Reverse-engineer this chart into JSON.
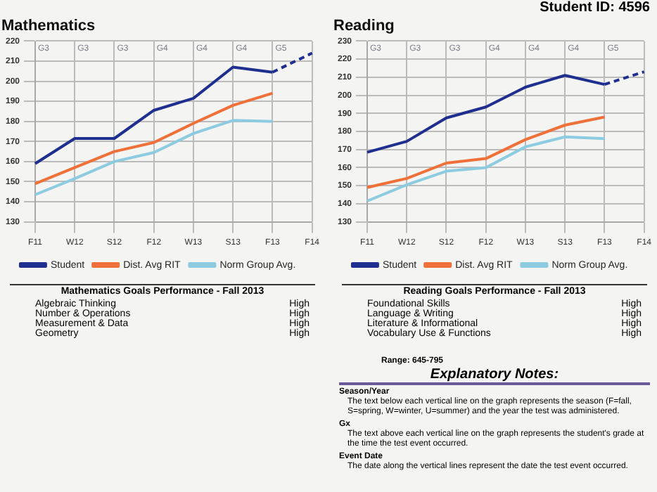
{
  "chart_data": [
    {
      "type": "line",
      "title": "Mathematics",
      "categories": [
        "F11",
        "W12",
        "S12",
        "F12",
        "W13",
        "S13",
        "F13",
        "F14"
      ],
      "ylim": [
        130,
        220
      ],
      "yticks": [
        130,
        140,
        150,
        160,
        170,
        180,
        190,
        200,
        210,
        220
      ],
      "grid": true,
      "legend": "bottom",
      "marker": "none",
      "series": [
        {
          "name": "Student",
          "color": "#1f2f8f",
          "values": [
            159,
            171.5,
            171.5,
            185.5,
            191.5,
            207,
            204.5,
            null
          ]
        },
        {
          "color": "#1f2f8f",
          "line_style": "dashed",
          "values": [
            null,
            null,
            null,
            null,
            null,
            null,
            204.5,
            214
          ]
        },
        {
          "name": "Dist. Avg RIT",
          "color": "#f0703a",
          "values": [
            149,
            157,
            165,
            169.5,
            179,
            188,
            194,
            null
          ]
        },
        {
          "name": "Norm Group Avg.",
          "color": "#8ccbe0",
          "values": [
            143.5,
            151.5,
            160,
            164.5,
            174,
            180.5,
            180,
            null
          ]
        }
      ],
      "annotations": [
        "G3",
        "G3",
        "G3",
        "G4",
        "G4",
        "G4",
        "G5"
      ]
    },
    {
      "type": "line",
      "title": "Reading",
      "subtitle": "Student ID: 4596",
      "categories": [
        "F11",
        "W12",
        "S12",
        "F12",
        "W13",
        "S13",
        "F13",
        "F14"
      ],
      "ylim": [
        130,
        230
      ],
      "yticks": [
        130,
        140,
        150,
        160,
        170,
        180,
        190,
        200,
        210,
        220,
        230
      ],
      "grid": true,
      "legend": "bottom",
      "marker": "none",
      "series": [
        {
          "name": "Student",
          "color": "#1f2f8f",
          "values": [
            168.5,
            174.5,
            187.5,
            193.5,
            204.5,
            211,
            206,
            null
          ]
        },
        {
          "color": "#1f2f8f",
          "line_style": "dashed",
          "values": [
            null,
            null,
            null,
            null,
            null,
            null,
            206,
            213
          ]
        },
        {
          "name": "Dist. Avg RIT",
          "color": "#f0703a",
          "values": [
            149,
            154,
            162.5,
            165,
            175.5,
            183.5,
            188,
            null
          ]
        },
        {
          "name": "Norm Group Avg.",
          "color": "#8ccbe0",
          "values": [
            141.5,
            150.5,
            158,
            160,
            171.5,
            177,
            176,
            null
          ]
        }
      ],
      "annotations": [
        "G3",
        "G3",
        "G3",
        "G4",
        "G4",
        "G4",
        "G5"
      ]
    },
    {
      "type": "other",
      "title": "Mathematics Goals Performance - Fall 2013",
      "annotations": [
        "Algebraic Thinking",
        "High",
        "Number & Operations",
        "High",
        "Measurement & Data",
        "High",
        "Geometry",
        "High"
      ]
    },
    {
      "type": "other",
      "title": "Reading Goals Performance - Fall 2013",
      "annotations": [
        "Foundational Skills",
        "High",
        "Language & Writing",
        "High",
        "Literature & Informational",
        "High",
        "Vocabulary Use & Functions",
        "High"
      ]
    },
    {
      "type": "other",
      "title": "Explanatory Notes:",
      "subtitle": "Range: 645-795",
      "annotations": [
        "Season/Year",
        "The text below each vertical line on the graph represents the season (F=fall, S=spring, W=winter, U=summer) and the year the test was administered.",
        "Gx",
        "The text above each vertical line on the graph represents the student's grade at the time the test event occurred.",
        "Event Date",
        "The date along the vertical lines represent the date the test event occurred."
      ]
    }
  ]
}
